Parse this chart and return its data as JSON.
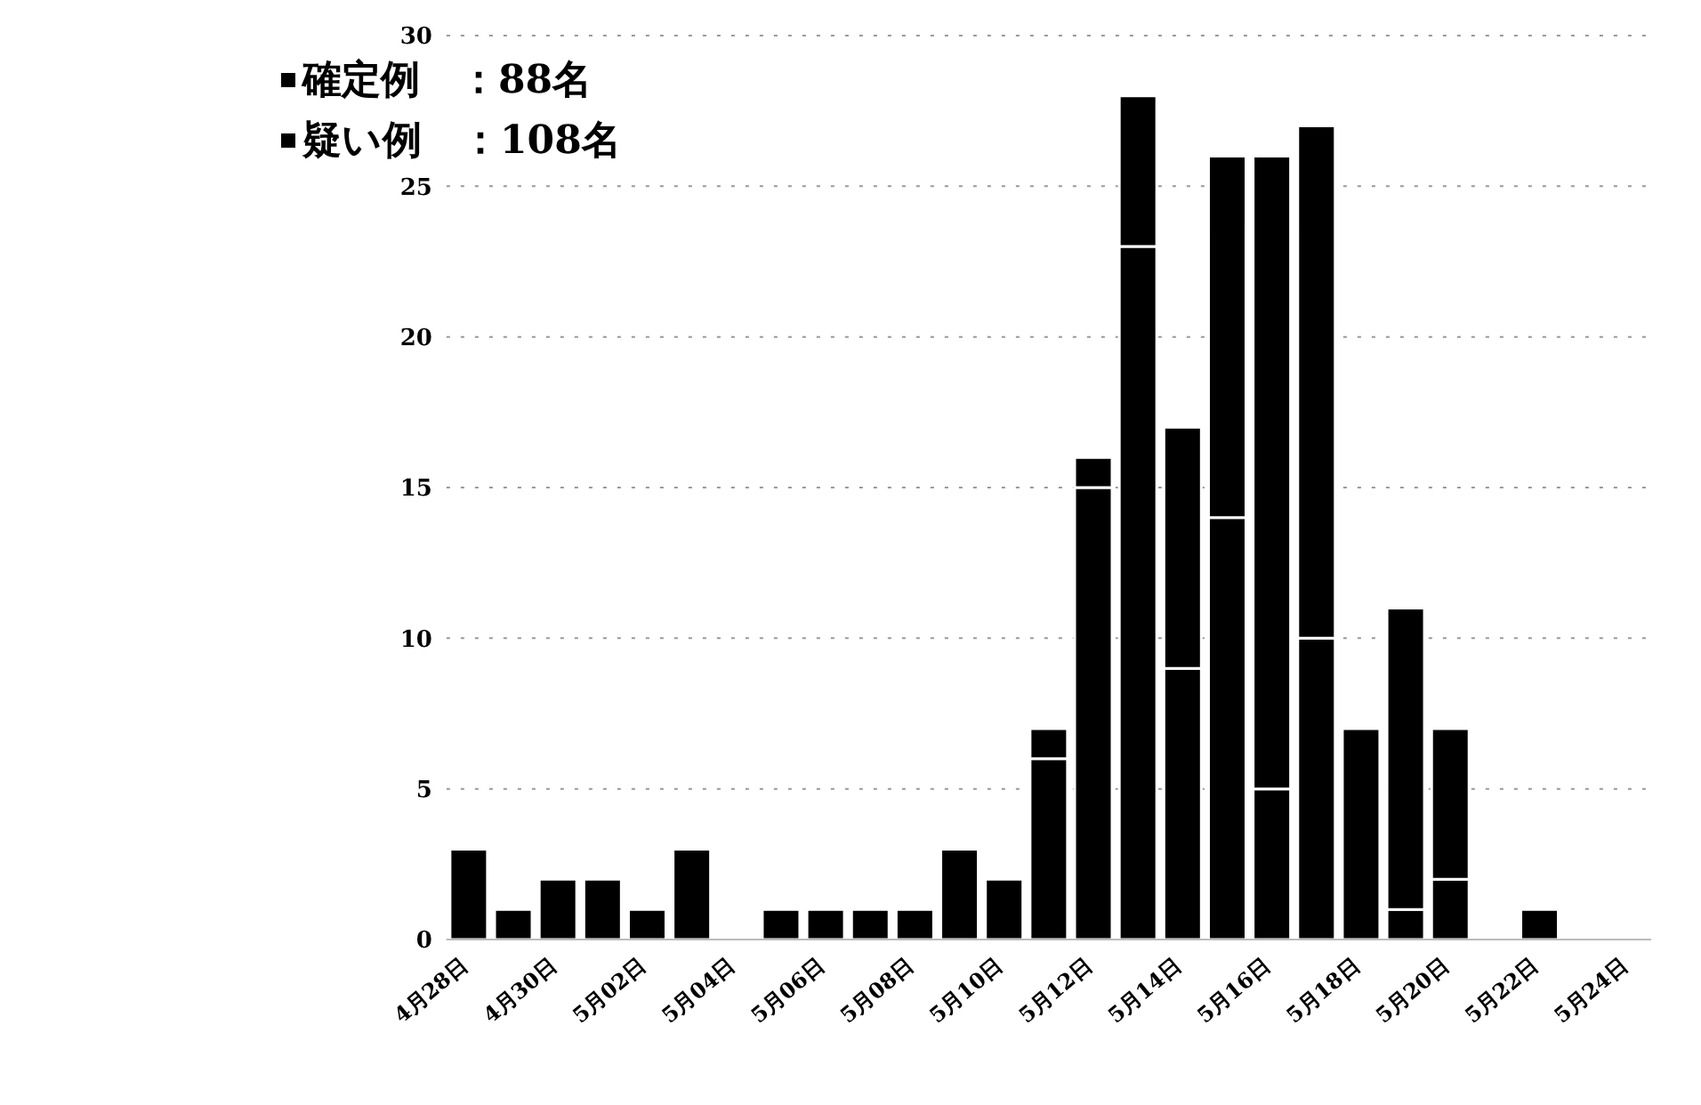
{
  "chart_data": {
    "type": "bar",
    "stacked": true,
    "categories": [
      "4月28日",
      null,
      "4月30日",
      null,
      "5月02日",
      null,
      "5月04日",
      null,
      "5月06日",
      null,
      "5月08日",
      null,
      "5月10日",
      null,
      "5月12日",
      null,
      "5月14日",
      null,
      "5月16日",
      null,
      "5月18日",
      null,
      "5月20日",
      null,
      "5月22日",
      null,
      "5月24日"
    ],
    "series": [
      {
        "name": "確定例　：88名",
        "color": "#000000",
        "values": [
          0,
          0,
          0,
          0,
          0,
          0,
          0,
          0,
          0,
          0,
          0,
          0,
          0,
          6,
          15,
          23,
          9,
          14,
          5,
          10,
          0,
          1,
          2,
          0,
          0,
          0,
          0
        ]
      },
      {
        "name": "疑い例　：108名",
        "color": "#000000",
        "values": [
          3,
          1,
          2,
          2,
          1,
          3,
          0,
          1,
          1,
          1,
          1,
          3,
          2,
          1,
          1,
          5,
          8,
          12,
          21,
          17,
          7,
          10,
          5,
          0,
          1,
          0,
          0
        ]
      }
    ],
    "ylim": [
      0,
      30
    ],
    "yticks": [
      0,
      5,
      10,
      15,
      20,
      25,
      30
    ],
    "grid": "y",
    "legend": "top left"
  }
}
